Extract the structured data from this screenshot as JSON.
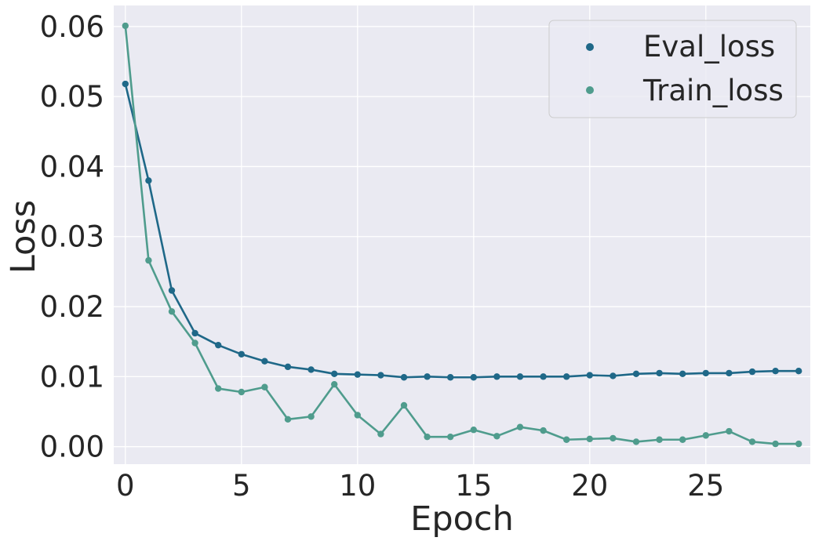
{
  "chart_data": {
    "type": "line",
    "xlabel": "Epoch",
    "ylabel": "Loss",
    "xlim": [
      -0.5,
      29.5
    ],
    "ylim": [
      -0.0025,
      0.063
    ],
    "xticks": [
      0,
      5,
      10,
      15,
      20,
      25
    ],
    "xtick_labels": [
      "0",
      "5",
      "10",
      "15",
      "20",
      "25"
    ],
    "yticks": [
      0.0,
      0.01,
      0.02,
      0.03,
      0.04,
      0.05,
      0.06
    ],
    "ytick_labels": [
      "0.00",
      "0.01",
      "0.02",
      "0.03",
      "0.04",
      "0.05",
      "0.06"
    ],
    "grid": true,
    "legend_position": "top-right",
    "x": [
      0,
      1,
      2,
      3,
      4,
      5,
      6,
      7,
      8,
      9,
      10,
      11,
      12,
      13,
      14,
      15,
      16,
      17,
      18,
      19,
      20,
      21,
      22,
      23,
      24,
      25,
      26,
      27,
      28,
      29
    ],
    "series": [
      {
        "name": "Eval_loss",
        "color": "#1f6888",
        "values": [
          0.0518,
          0.038,
          0.0223,
          0.0162,
          0.0145,
          0.0132,
          0.0122,
          0.0114,
          0.011,
          0.0104,
          0.0103,
          0.0102,
          0.0099,
          0.01,
          0.0099,
          0.0099,
          0.01,
          0.01,
          0.01,
          0.01,
          0.0102,
          0.0101,
          0.0104,
          0.0105,
          0.0104,
          0.0105,
          0.0105,
          0.0107,
          0.0108,
          0.0108
        ]
      },
      {
        "name": "Train_loss",
        "color": "#4f9c8d",
        "values": [
          0.0601,
          0.0266,
          0.0193,
          0.0148,
          0.0083,
          0.0078,
          0.0085,
          0.0039,
          0.0043,
          0.0089,
          0.0045,
          0.0018,
          0.0059,
          0.0014,
          0.0014,
          0.0024,
          0.0015,
          0.0028,
          0.0023,
          0.001,
          0.0011,
          0.0012,
          0.0007,
          0.001,
          0.001,
          0.0016,
          0.0022,
          0.0007,
          0.0004,
          0.0004
        ]
      }
    ]
  },
  "colors": {
    "plot_background": "#eaeaf2",
    "grid": "#ffffff",
    "text": "#262626"
  }
}
